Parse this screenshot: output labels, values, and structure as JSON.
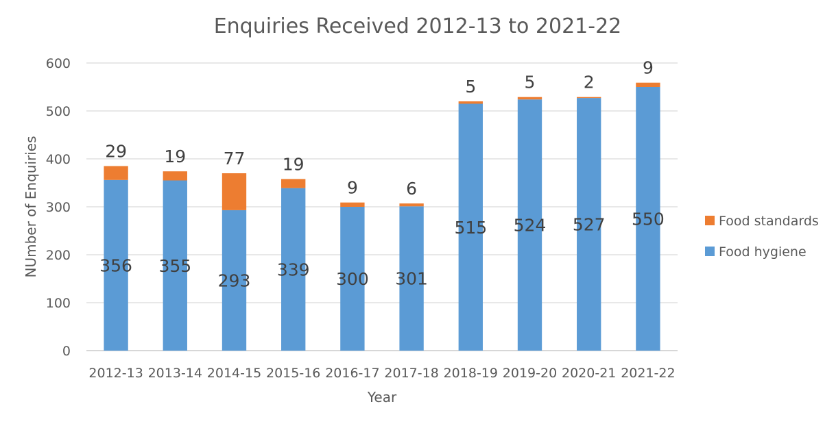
{
  "chart_data": {
    "type": "bar",
    "stacked": true,
    "title": "Enquiries Received 2012-13 to 2021-22",
    "xlabel": "Year",
    "ylabel": "NUmber of Enquiries",
    "ylim": [
      0,
      600
    ],
    "yticks": [
      0,
      100,
      200,
      300,
      400,
      500,
      600
    ],
    "grid": true,
    "legend_position": "right",
    "categories": [
      "2012-13",
      "2013-14",
      "2014-15",
      "2015-16",
      "2016-17",
      "2017-18",
      "2018-19",
      "2019-20",
      "2020-21",
      "2021-22"
    ],
    "series": [
      {
        "name": "Food hygiene",
        "color": "#5b9bd5",
        "values": [
          356,
          355,
          293,
          339,
          300,
          301,
          515,
          524,
          527,
          550
        ]
      },
      {
        "name": "Food standards",
        "color": "#ed7d31",
        "values": [
          29,
          19,
          77,
          19,
          9,
          6,
          5,
          5,
          2,
          9
        ]
      }
    ]
  }
}
